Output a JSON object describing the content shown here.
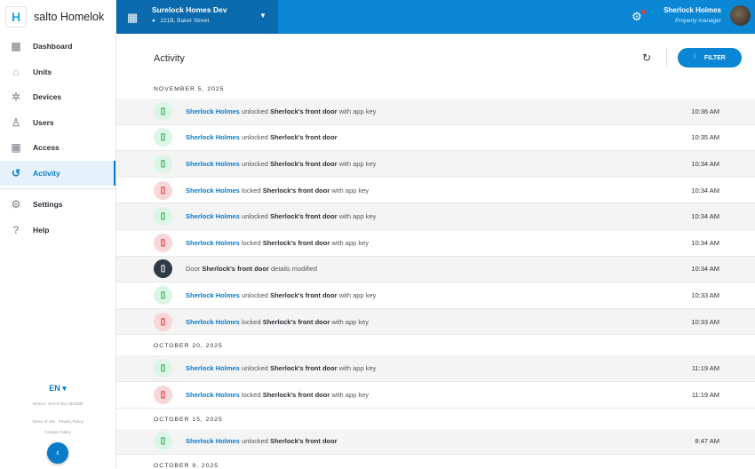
{
  "app": {
    "logo_letter": "H",
    "name": "salto Homelok"
  },
  "sidebar": {
    "items": [
      {
        "label": "Dashboard",
        "icon": "grid-icon"
      },
      {
        "label": "Units",
        "icon": "home-icon"
      },
      {
        "label": "Devices",
        "icon": "network-icon"
      },
      {
        "label": "Users",
        "icon": "user-icon"
      },
      {
        "label": "Access",
        "icon": "badge-icon"
      },
      {
        "label": "Activity",
        "icon": "history-icon",
        "active": true
      },
      {
        "label": "Settings",
        "icon": "gear-icon"
      },
      {
        "label": "Help",
        "icon": "help-icon"
      }
    ],
    "language": "EN",
    "version": "Version: v0.0.0-sha.7d129de",
    "terms": "Terms of use",
    "privacy": "Privacy Policy",
    "cookies": "Cookies Policy"
  },
  "header": {
    "site_name": "Surelock Homes Dev",
    "site_address": "221B, Baker Street",
    "user_name": "Sherlock Holmes",
    "user_role": "Property manager"
  },
  "main": {
    "title": "Activity",
    "filter_label": "FILTER",
    "groups": [
      {
        "date": "NOVEMBER 5, 2025",
        "rows": [
          {
            "type": "unlock",
            "actor": "Sherlock Holmes",
            "verb": " unlocked ",
            "door": "Sherlock's front door",
            "suffix": " with app key",
            "time": "10:36 AM"
          },
          {
            "type": "unlock",
            "actor": "Sherlock Holmes",
            "verb": " unlocked ",
            "door": "Sherlock's front door",
            "suffix": "",
            "time": "10:35 AM"
          },
          {
            "type": "unlock",
            "actor": "Sherlock Holmes",
            "verb": " unlocked ",
            "door": "Sherlock's front door",
            "suffix": " with app key",
            "time": "10:34 AM"
          },
          {
            "type": "lock",
            "actor": "Sherlock Holmes",
            "verb": " locked ",
            "door": "Sherlock's front door",
            "suffix": " with app key",
            "time": "10:34 AM"
          },
          {
            "type": "unlock",
            "actor": "Sherlock Holmes",
            "verb": " unlocked ",
            "door": "Sherlock's front door",
            "suffix": " with app key",
            "time": "10:34 AM"
          },
          {
            "type": "lock",
            "actor": "Sherlock Holmes",
            "verb": " locked ",
            "door": "Sherlock's front door",
            "suffix": " with app key",
            "time": "10:34 AM"
          },
          {
            "type": "mod",
            "actor": "",
            "verb": "Door ",
            "door": "Sherlock's front door",
            "suffix": " details modified",
            "time": "10:34 AM"
          },
          {
            "type": "unlock",
            "actor": "Sherlock Holmes",
            "verb": " unlocked ",
            "door": "Sherlock's front door",
            "suffix": " with app key",
            "time": "10:33 AM"
          },
          {
            "type": "lock",
            "actor": "Sherlock Holmes",
            "verb": " locked ",
            "door": "Sherlock's front door",
            "suffix": " with app key",
            "time": "10:33 AM"
          }
        ]
      },
      {
        "date": "OCTOBER 20, 2025",
        "rows": [
          {
            "type": "unlock",
            "actor": "Sherlock Holmes",
            "verb": " unlocked ",
            "door": "Sherlock's front door",
            "suffix": " with app key",
            "time": "11:19 AM"
          },
          {
            "type": "lock",
            "actor": "Sherlock Holmes",
            "verb": " locked ",
            "door": "Sherlock's front door",
            "suffix": " with app key",
            "time": "11:19 AM"
          }
        ]
      },
      {
        "date": "OCTOBER 15, 2025",
        "rows": [
          {
            "type": "unlock",
            "actor": "Sherlock Holmes",
            "verb": " unlocked ",
            "door": "Sherlock's front door",
            "suffix": "",
            "time": "8:47 AM"
          }
        ]
      },
      {
        "date": "OCTOBER 9, 2025",
        "rows": []
      }
    ]
  },
  "colors": {
    "primary": "#0a86d4",
    "site_bg": "#0a6aad",
    "unlock": "#1fa64a",
    "lock": "#e02a2a"
  }
}
